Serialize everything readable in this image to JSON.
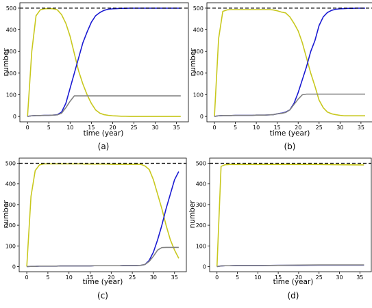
{
  "colors": {
    "yellow": "#c8c81e",
    "blue": "#1a1ad2",
    "gray": "#808080",
    "dashed": "#000000",
    "frame": "#000000"
  },
  "chart_data": [
    {
      "type": "line",
      "caption": "(a)",
      "xlabel": "time (year)",
      "ylabel": "number",
      "xlim": [
        -1.8,
        37.8
      ],
      "ylim": [
        -25,
        525
      ],
      "xticks": [
        "0",
        "5",
        "10",
        "15",
        "20",
        "25",
        "30",
        "35"
      ],
      "yticks": [
        "0",
        "100",
        "200",
        "300",
        "400",
        "500"
      ],
      "reference_line": 500,
      "series": [
        {
          "color_key": "yellow",
          "x": [
            0,
            1,
            2,
            3,
            4,
            5,
            6,
            7,
            8,
            9,
            10,
            11,
            12,
            13,
            14,
            15,
            16,
            17,
            18,
            19,
            20,
            21,
            22,
            23,
            24,
            25,
            26,
            27,
            28,
            29,
            30,
            31,
            32,
            33,
            34,
            35,
            36
          ],
          "y": [
            0,
            300,
            465,
            492,
            497,
            498,
            497,
            492,
            470,
            430,
            370,
            290,
            210,
            150,
            100,
            60,
            30,
            15,
            8,
            5,
            3,
            2,
            1,
            1,
            0,
            0,
            0,
            0,
            0,
            0,
            0,
            0,
            0,
            0,
            0,
            0,
            0
          ]
        },
        {
          "color_key": "blue",
          "x": [
            0,
            1,
            2,
            3,
            4,
            5,
            6,
            7,
            8,
            9,
            10,
            11,
            12,
            13,
            14,
            15,
            16,
            17,
            18,
            19,
            20,
            21,
            22,
            23,
            24,
            25,
            26,
            27,
            28,
            29,
            30,
            31,
            32,
            33,
            34,
            35,
            36
          ],
          "y": [
            0,
            3,
            4,
            4,
            5,
            5,
            6,
            8,
            20,
            60,
            130,
            200,
            270,
            340,
            390,
            435,
            465,
            480,
            490,
            495,
            497,
            498,
            499,
            499,
            500,
            500,
            500,
            500,
            500,
            500,
            500,
            500,
            500,
            500,
            500,
            500,
            500
          ]
        },
        {
          "color_key": "gray",
          "x": [
            0,
            1,
            2,
            3,
            4,
            5,
            6,
            7,
            8,
            9,
            10,
            11,
            12,
            13,
            14,
            15,
            16,
            17,
            18,
            19,
            20,
            21,
            22,
            23,
            24,
            25,
            26,
            27,
            28,
            29,
            30,
            31,
            32,
            33,
            34,
            35,
            36
          ],
          "y": [
            0,
            3,
            4,
            4,
            5,
            5,
            6,
            7,
            15,
            40,
            70,
            95,
            95,
            95,
            95,
            95,
            95,
            95,
            95,
            95,
            95,
            95,
            95,
            95,
            95,
            95,
            95,
            95,
            95,
            95,
            95,
            95,
            95,
            95,
            95,
            95,
            95
          ]
        }
      ]
    },
    {
      "type": "line",
      "caption": "(b)",
      "xlabel": "time (year)",
      "ylabel": "number",
      "xlim": [
        -1.8,
        37.8
      ],
      "ylim": [
        -25,
        525
      ],
      "xticks": [
        "0",
        "5",
        "10",
        "15",
        "20",
        "25",
        "30",
        "35"
      ],
      "yticks": [
        "0",
        "100",
        "200",
        "300",
        "400",
        "500"
      ],
      "reference_line": 500,
      "series": [
        {
          "color_key": "yellow",
          "x": [
            0,
            1,
            2,
            3,
            4,
            5,
            6,
            7,
            8,
            9,
            10,
            11,
            12,
            13,
            14,
            15,
            16,
            17,
            18,
            19,
            20,
            21,
            22,
            23,
            24,
            25,
            26,
            27,
            28,
            29,
            30,
            31,
            32,
            33,
            34,
            35,
            36
          ],
          "y": [
            0,
            360,
            485,
            492,
            493,
            493,
            493,
            493,
            493,
            493,
            493,
            493,
            493,
            493,
            492,
            488,
            482,
            478,
            460,
            430,
            395,
            340,
            270,
            200,
            140,
            75,
            40,
            20,
            12,
            8,
            5,
            3,
            3,
            3,
            3,
            3,
            3
          ]
        },
        {
          "color_key": "blue",
          "x": [
            0,
            1,
            2,
            3,
            4,
            5,
            6,
            7,
            8,
            9,
            10,
            11,
            12,
            13,
            14,
            15,
            16,
            17,
            18,
            19,
            20,
            21,
            22,
            23,
            24,
            25,
            26,
            27,
            28,
            29,
            30,
            31,
            32,
            33,
            34,
            35,
            36
          ],
          "y": [
            0,
            3,
            4,
            4,
            4,
            5,
            5,
            5,
            5,
            5,
            6,
            6,
            6,
            7,
            8,
            12,
            15,
            20,
            30,
            60,
            110,
            170,
            230,
            300,
            350,
            420,
            460,
            480,
            490,
            495,
            497,
            498,
            499,
            499,
            500,
            500,
            500
          ]
        },
        {
          "color_key": "gray",
          "x": [
            0,
            1,
            2,
            3,
            4,
            5,
            6,
            7,
            8,
            9,
            10,
            11,
            12,
            13,
            14,
            15,
            16,
            17,
            18,
            19,
            20,
            21,
            22,
            23,
            24,
            25,
            26,
            27,
            28,
            29,
            30,
            31,
            32,
            33,
            34,
            35,
            36
          ],
          "y": [
            0,
            3,
            4,
            4,
            4,
            5,
            5,
            5,
            5,
            5,
            6,
            6,
            6,
            7,
            8,
            12,
            14,
            18,
            30,
            55,
            80,
            100,
            103,
            103,
            103,
            103,
            103,
            103,
            103,
            103,
            103,
            103,
            103,
            103,
            103,
            103,
            103
          ]
        }
      ]
    },
    {
      "type": "line",
      "caption": "(c)",
      "xlabel": "time (year)",
      "ylabel": "number",
      "xlim": [
        -1.8,
        37.8
      ],
      "ylim": [
        -25,
        525
      ],
      "xticks": [
        "0",
        "5",
        "10",
        "15",
        "20",
        "25",
        "30",
        "35"
      ],
      "yticks": [
        "0",
        "100",
        "200",
        "300",
        "400",
        "500"
      ],
      "reference_line": 500,
      "series": [
        {
          "color_key": "yellow",
          "x": [
            0,
            1,
            2,
            3,
            4,
            5,
            6,
            7,
            8,
            9,
            10,
            11,
            12,
            13,
            14,
            15,
            16,
            17,
            18,
            19,
            20,
            21,
            22,
            23,
            24,
            25,
            26,
            27,
            28,
            29,
            30,
            31,
            32,
            33,
            34,
            35,
            36
          ],
          "y": [
            0,
            340,
            465,
            492,
            497,
            497,
            497,
            497,
            497,
            497,
            497,
            497,
            497,
            497,
            496,
            496,
            496,
            496,
            496,
            496,
            495,
            495,
            495,
            495,
            495,
            495,
            495,
            495,
            487,
            470,
            420,
            350,
            280,
            200,
            130,
            80,
            40
          ]
        },
        {
          "color_key": "blue",
          "x": [
            0,
            1,
            2,
            3,
            4,
            5,
            6,
            7,
            8,
            9,
            10,
            11,
            12,
            13,
            14,
            15,
            16,
            17,
            18,
            19,
            20,
            21,
            22,
            23,
            24,
            25,
            26,
            27,
            28,
            29,
            30,
            31,
            32,
            33,
            34,
            35,
            36
          ],
          "y": [
            0,
            1,
            1,
            2,
            2,
            2,
            2,
            2,
            3,
            3,
            3,
            3,
            3,
            3,
            3,
            3,
            4,
            4,
            4,
            4,
            4,
            4,
            4,
            5,
            5,
            5,
            5,
            6,
            10,
            30,
            70,
            130,
            200,
            280,
            350,
            420,
            460
          ]
        },
        {
          "color_key": "gray",
          "x": [
            0,
            1,
            2,
            3,
            4,
            5,
            6,
            7,
            8,
            9,
            10,
            11,
            12,
            13,
            14,
            15,
            16,
            17,
            18,
            19,
            20,
            21,
            22,
            23,
            24,
            25,
            26,
            27,
            28,
            29,
            30,
            31,
            32,
            33,
            34,
            35,
            36
          ],
          "y": [
            0,
            1,
            1,
            2,
            2,
            2,
            2,
            2,
            3,
            3,
            3,
            3,
            3,
            3,
            3,
            3,
            4,
            4,
            4,
            4,
            4,
            4,
            4,
            5,
            5,
            5,
            5,
            6,
            10,
            25,
            50,
            80,
            92,
            93,
            93,
            93,
            93
          ]
        }
      ]
    },
    {
      "type": "line",
      "caption": "(d)",
      "xlabel": "time (year)",
      "ylabel": "number",
      "xlim": [
        -1.8,
        37.8
      ],
      "ylim": [
        -25,
        525
      ],
      "xticks": [
        "0",
        "5",
        "10",
        "15",
        "20",
        "25",
        "30",
        "35"
      ],
      "yticks": [
        "0",
        "100",
        "200",
        "300",
        "400",
        "500"
      ],
      "reference_line": 500,
      "series": [
        {
          "color_key": "yellow",
          "x": [
            0,
            1,
            2,
            3,
            5,
            10,
            15,
            20,
            25,
            30,
            35,
            36
          ],
          "y": [
            0,
            485,
            493,
            494,
            494,
            494,
            494,
            494,
            494,
            493,
            492,
            492
          ]
        },
        {
          "color_key": "blue",
          "x": [
            0,
            1,
            2,
            3,
            5,
            10,
            15,
            20,
            25,
            30,
            35,
            36
          ],
          "y": [
            0,
            3,
            4,
            4,
            5,
            5,
            6,
            6,
            7,
            7,
            7,
            7
          ]
        },
        {
          "color_key": "gray",
          "x": [
            0,
            1,
            2,
            3,
            5,
            10,
            15,
            20,
            25,
            30,
            35,
            36
          ],
          "y": [
            0,
            3,
            4,
            4,
            5,
            5,
            6,
            7,
            8,
            8,
            8,
            8
          ]
        }
      ]
    }
  ]
}
